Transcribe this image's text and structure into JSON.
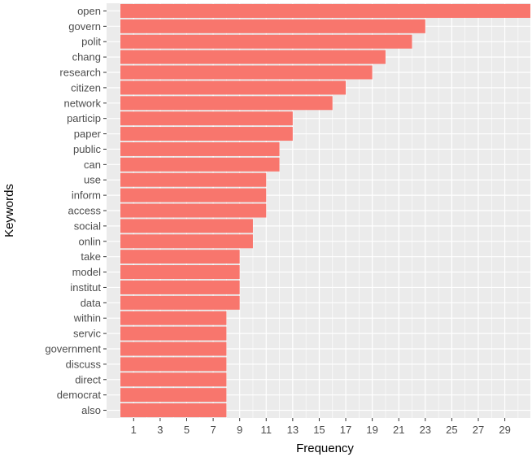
{
  "chart_data": {
    "type": "bar",
    "orientation": "horizontal",
    "xlabel": "Frequency",
    "ylabel": "Keywords",
    "xlim": [
      0,
      30
    ],
    "xticks": [
      1,
      3,
      5,
      7,
      9,
      11,
      13,
      15,
      17,
      19,
      21,
      23,
      25,
      27,
      29
    ],
    "grid": true,
    "legend": "none",
    "bar_color": "#F8766D",
    "panel_color": "#EBEBEB",
    "grid_color": "#FFFFFF",
    "categories": [
      "open",
      "govern",
      "polit",
      "chang",
      "research",
      "citizen",
      "network",
      "particip",
      "paper",
      "public",
      "can",
      "use",
      "inform",
      "access",
      "social",
      "onlin",
      "take",
      "model",
      "institut",
      "data",
      "within",
      "servic",
      "government",
      "discuss",
      "direct",
      "democrat",
      "also"
    ],
    "values": [
      31,
      23,
      22,
      20,
      19,
      17,
      16,
      13,
      13,
      12,
      12,
      11,
      11,
      11,
      10,
      10,
      9,
      9,
      9,
      9,
      8,
      8,
      8,
      8,
      8,
      8,
      8
    ]
  }
}
